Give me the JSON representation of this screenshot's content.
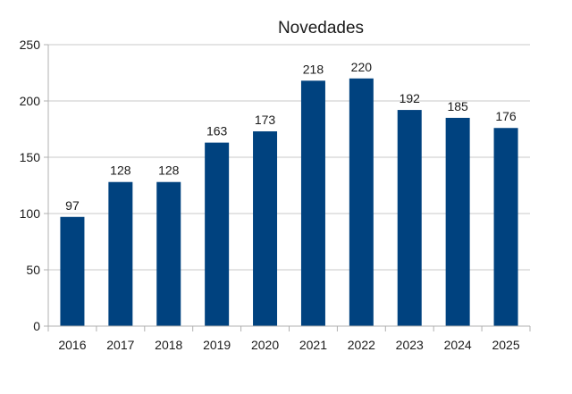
{
  "chart_data": {
    "type": "bar",
    "title": "Novedades",
    "xlabel": "",
    "ylabel": "",
    "categories": [
      "2016",
      "2017",
      "2018",
      "2019",
      "2020",
      "2021",
      "2022",
      "2023",
      "2024",
      "2025"
    ],
    "values": [
      97,
      128,
      128,
      163,
      173,
      218,
      220,
      192,
      185,
      176
    ],
    "data_labels": [
      "97",
      "128",
      "128",
      "163",
      "173",
      "218",
      "220",
      "192",
      "185",
      "176"
    ],
    "ylim": [
      0,
      250
    ],
    "yticks": [
      0,
      50,
      100,
      150,
      200,
      250
    ],
    "ytick_labels": [
      "0",
      "50",
      "100",
      "150",
      "200",
      "250"
    ],
    "grid": "horizontal",
    "legend": "none",
    "colors": {
      "bar": "#00427f",
      "grid": "#c8c8c8",
      "axis": "#b0b0b0",
      "text": "#1a1a1a"
    }
  }
}
